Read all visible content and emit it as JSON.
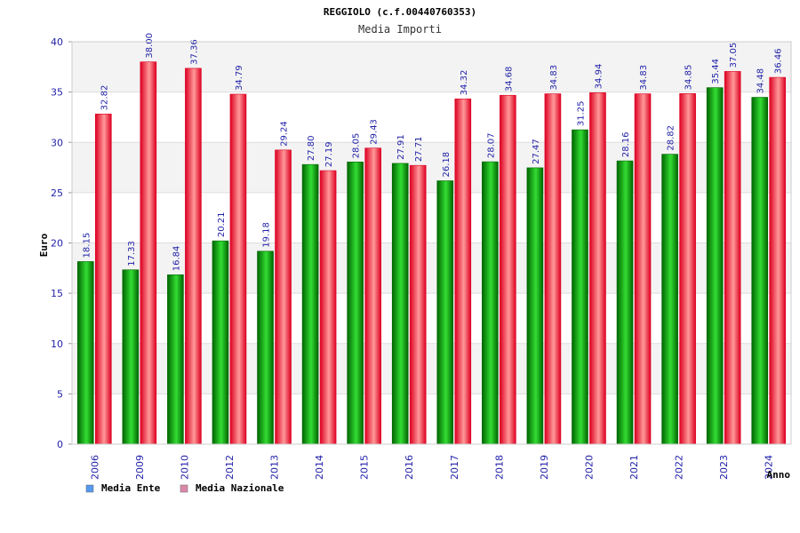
{
  "colors": {
    "series1_dark": "#006600",
    "series1_light": "#33dd33",
    "series2_dark": "#dd0022",
    "series2_light": "#ff9999",
    "legend1": "#5599ee",
    "legend2": "#dd88aa",
    "band": "#f3f3f3",
    "text_blue": "#1f1fa8"
  },
  "chart_data": {
    "type": "bar",
    "title": "REGGIOLO (c.f.00440760353)",
    "subtitle": "Media Importi",
    "xlabel": "Anno",
    "ylabel": "Euro",
    "ylim": [
      0,
      40
    ],
    "yticks": [
      0,
      5,
      10,
      15,
      20,
      25,
      30,
      35,
      40
    ],
    "grid": true,
    "legend_position": "bottom-left",
    "categories": [
      "2006",
      "2009",
      "2010",
      "2012",
      "2013",
      "2014",
      "2015",
      "2016",
      "2017",
      "2018",
      "2019",
      "2020",
      "2021",
      "2022",
      "2023",
      "2024"
    ],
    "series": [
      {
        "name": "Media Ente",
        "values": [
          18.15,
          17.33,
          16.84,
          20.21,
          19.18,
          27.8,
          28.05,
          27.91,
          26.18,
          28.07,
          27.47,
          31.25,
          28.16,
          28.82,
          35.44,
          34.48
        ],
        "labels": [
          "18.15",
          "17.33",
          "16.84",
          "20.21",
          "19.18",
          "27.80",
          "28.05",
          "27.91",
          "26.18",
          "28.07",
          "27.47",
          "31.25",
          "28.16",
          "28.82",
          "35.44",
          "34.48"
        ]
      },
      {
        "name": "Media Nazionale",
        "values": [
          32.82,
          38.0,
          37.36,
          34.79,
          29.24,
          27.19,
          29.43,
          27.71,
          34.32,
          34.68,
          34.83,
          34.94,
          34.83,
          34.85,
          37.05,
          36.46
        ],
        "labels": [
          "32.82",
          "38.00",
          "37.36",
          "34.79",
          "29.24",
          "27.19",
          "29.43",
          "27.71",
          "34.32",
          "34.68",
          "34.83",
          "34.94",
          "34.83",
          "34.85",
          "37.05",
          "36.46"
        ]
      }
    ]
  }
}
